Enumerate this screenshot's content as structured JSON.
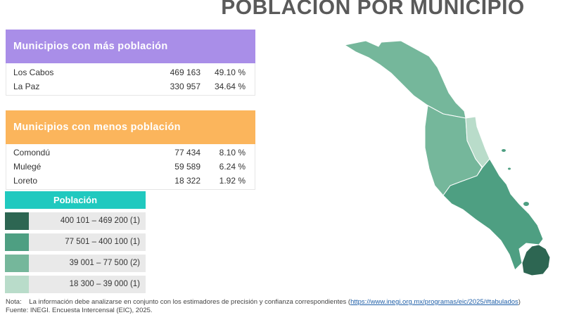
{
  "title": "POBLACIÓN POR MUNICIPIO",
  "colors": {
    "most_header": "#a98ee8",
    "least_header": "#fbb55c",
    "legend_header": "#20c9bf",
    "level1": "#2d6652",
    "level2": "#4e9f82",
    "level3": "#75b79b",
    "level4": "#b9dcca"
  },
  "most": {
    "heading": "Municipios con más población",
    "rows": [
      {
        "name": "Los Cabos",
        "value": "469 163",
        "pct": "49.10 %"
      },
      {
        "name": "La Paz",
        "value": "330 957",
        "pct": "34.64 %"
      }
    ]
  },
  "least": {
    "heading": "Municipios con menos población",
    "rows": [
      {
        "name": "Comondú",
        "value": "77 434",
        "pct": "8.10 %"
      },
      {
        "name": "Mulegé",
        "value": "59 589",
        "pct": "6.24 %"
      },
      {
        "name": "Loreto",
        "value": "18 322",
        "pct": "1.92 %"
      }
    ]
  },
  "legend": {
    "heading": "Población",
    "items": [
      {
        "label": "400 101 – 469 200 (1)"
      },
      {
        "label": "77 501 – 400 100 (1)"
      },
      {
        "label": "39 001 – 77 500 (2)"
      },
      {
        "label": "18 300 – 39 000 (1)"
      }
    ]
  },
  "note": {
    "prefix": "Nota:",
    "text": "La información debe analizarse en conjunto con los estimadores de precisión y confianza correspondientes (",
    "link": "https://www.inegi.org.mx/programas/eic/2025/#tabulados",
    "suffix": ")",
    "source": "Fuente: INEGI. Encuesta Intercensal (EIC), 2025."
  }
}
